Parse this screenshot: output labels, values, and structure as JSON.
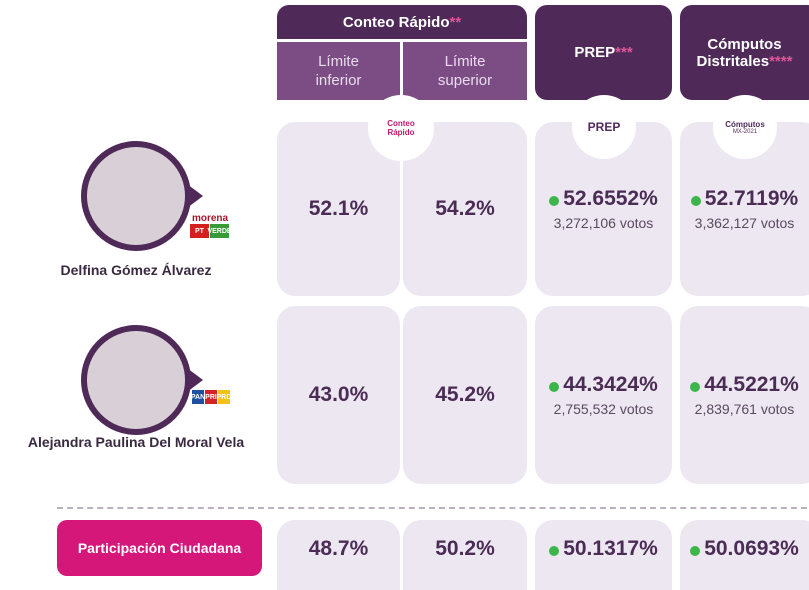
{
  "header": {
    "conteo": {
      "title": "Conteo Rápido",
      "mark": "**",
      "low": "Límite inferior",
      "high": "Límite superior"
    },
    "prep": {
      "title": "PREP",
      "mark": "***"
    },
    "computos": {
      "title": "Cómputos Distritales",
      "mark": "****"
    }
  },
  "logos": {
    "conteo": "Conteo Rápido",
    "prep": "PREP",
    "computos": "Cómputos",
    "computos_sub": "MX-2021"
  },
  "candidates": [
    {
      "name": "Delfina Gómez Álvarez",
      "parties": [
        "morena",
        "PT",
        "VERDE"
      ],
      "low": "52.1%",
      "high": "54.2%",
      "prep": "52.6552%",
      "prep_votes": "3,272,106 votos",
      "computos": "52.7119%",
      "computos_votes": "3,362,127 votos"
    },
    {
      "name": "Alejandra Paulina Del Moral Vela",
      "parties": [
        "PAN",
        "PRI",
        "PRD"
      ],
      "low": "43.0%",
      "high": "45.2%",
      "prep": "44.3424%",
      "prep_votes": "2,755,532 votos",
      "computos": "44.5221%",
      "computos_votes": "2,839,761 votos"
    }
  ],
  "participation": {
    "label": "Participación Ciudadana",
    "low": "48.7%",
    "high": "50.2%",
    "prep": "50.1317%",
    "computos": "50.0693%"
  }
}
